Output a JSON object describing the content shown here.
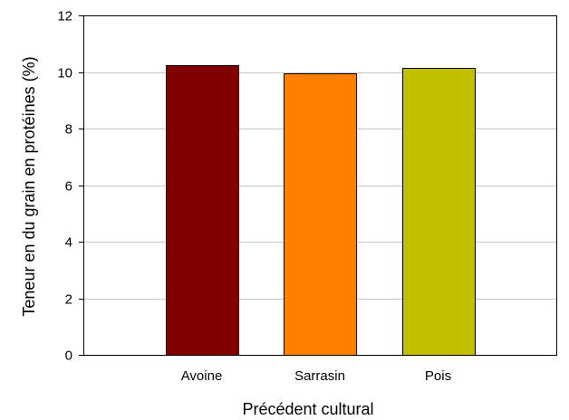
{
  "chart_data": {
    "type": "bar",
    "categories": [
      "Avoine",
      "Sarrasin",
      "Pois"
    ],
    "values": [
      10.25,
      9.95,
      10.15
    ],
    "colors": [
      "#800000",
      "#ff8000",
      "#c0c000"
    ],
    "xlabel": "Précédent cultural",
    "ylabel": "Teneur en du grain en protéines (%)",
    "ylim": [
      0,
      12
    ],
    "yticks": [
      "0",
      "2",
      "4",
      "6",
      "8",
      "10",
      "12"
    ],
    "grid": "horizontal"
  }
}
